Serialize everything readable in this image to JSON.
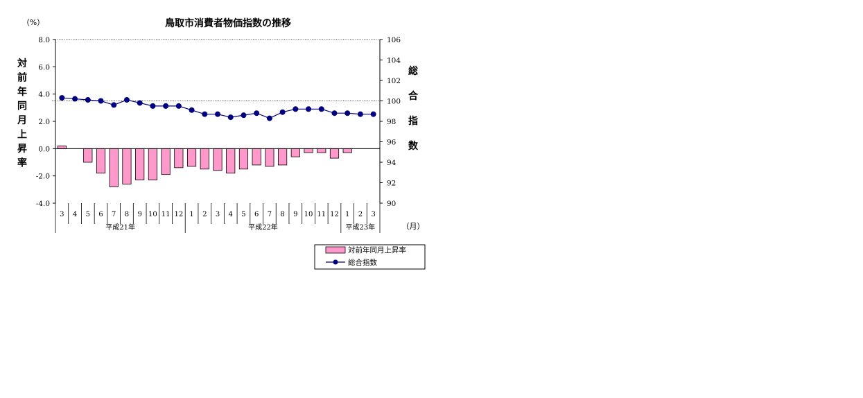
{
  "chart_data": {
    "type": "bar+line",
    "title": "鳥取市消費者物価指数の推移",
    "left_unit": "（%）",
    "right_unit": "（月）",
    "left_axis_label": "対前年同月上昇率",
    "right_axis_label": "総合指数",
    "left_ylim": [
      -4.0,
      8.0
    ],
    "left_ticks": [
      "8.0",
      "6.0",
      "4.0",
      "2.0",
      "0.0",
      "-2.0",
      "-4.0"
    ],
    "right_ylim": [
      90,
      106
    ],
    "right_ticks": [
      "106",
      "104",
      "102",
      "100",
      "98",
      "96",
      "94",
      "92",
      "90"
    ],
    "categories": [
      "3",
      "4",
      "5",
      "6",
      "7",
      "8",
      "9",
      "10",
      "11",
      "12",
      "1",
      "2",
      "3",
      "4",
      "5",
      "6",
      "7",
      "8",
      "9",
      "10",
      "11",
      "12",
      "1",
      "2",
      "3"
    ],
    "eras": [
      {
        "label": "平成21年",
        "start": 0,
        "count": 10
      },
      {
        "label": "平成22年",
        "start": 10,
        "count": 12
      },
      {
        "label": "平成23年",
        "start": 22,
        "count": 3
      }
    ],
    "series": [
      {
        "name": "対前年同月上昇率",
        "kind": "bar",
        "axis": "left",
        "color": "#ff99cc",
        "values": [
          0.2,
          0.0,
          -1.0,
          -1.8,
          -2.8,
          -2.6,
          -2.3,
          -2.3,
          -1.9,
          -1.4,
          -1.3,
          -1.5,
          -1.6,
          -1.8,
          -1.5,
          -1.2,
          -1.3,
          -1.2,
          -0.6,
          -0.3,
          -0.3,
          -0.7,
          -0.3,
          0.0,
          0.0
        ]
      },
      {
        "name": "総合指数",
        "kind": "line",
        "axis": "right",
        "color": "#000080",
        "values": [
          100.3,
          100.2,
          100.1,
          100.0,
          99.6,
          100.1,
          99.8,
          99.5,
          99.5,
          99.5,
          99.1,
          98.7,
          98.7,
          98.4,
          98.6,
          98.8,
          98.3,
          98.9,
          99.2,
          99.2,
          99.2,
          98.8,
          98.8,
          98.7,
          98.7
        ]
      }
    ],
    "reference_lines": {
      "right_value": 100.0
    },
    "grid": false,
    "legend": "bottom-right"
  }
}
